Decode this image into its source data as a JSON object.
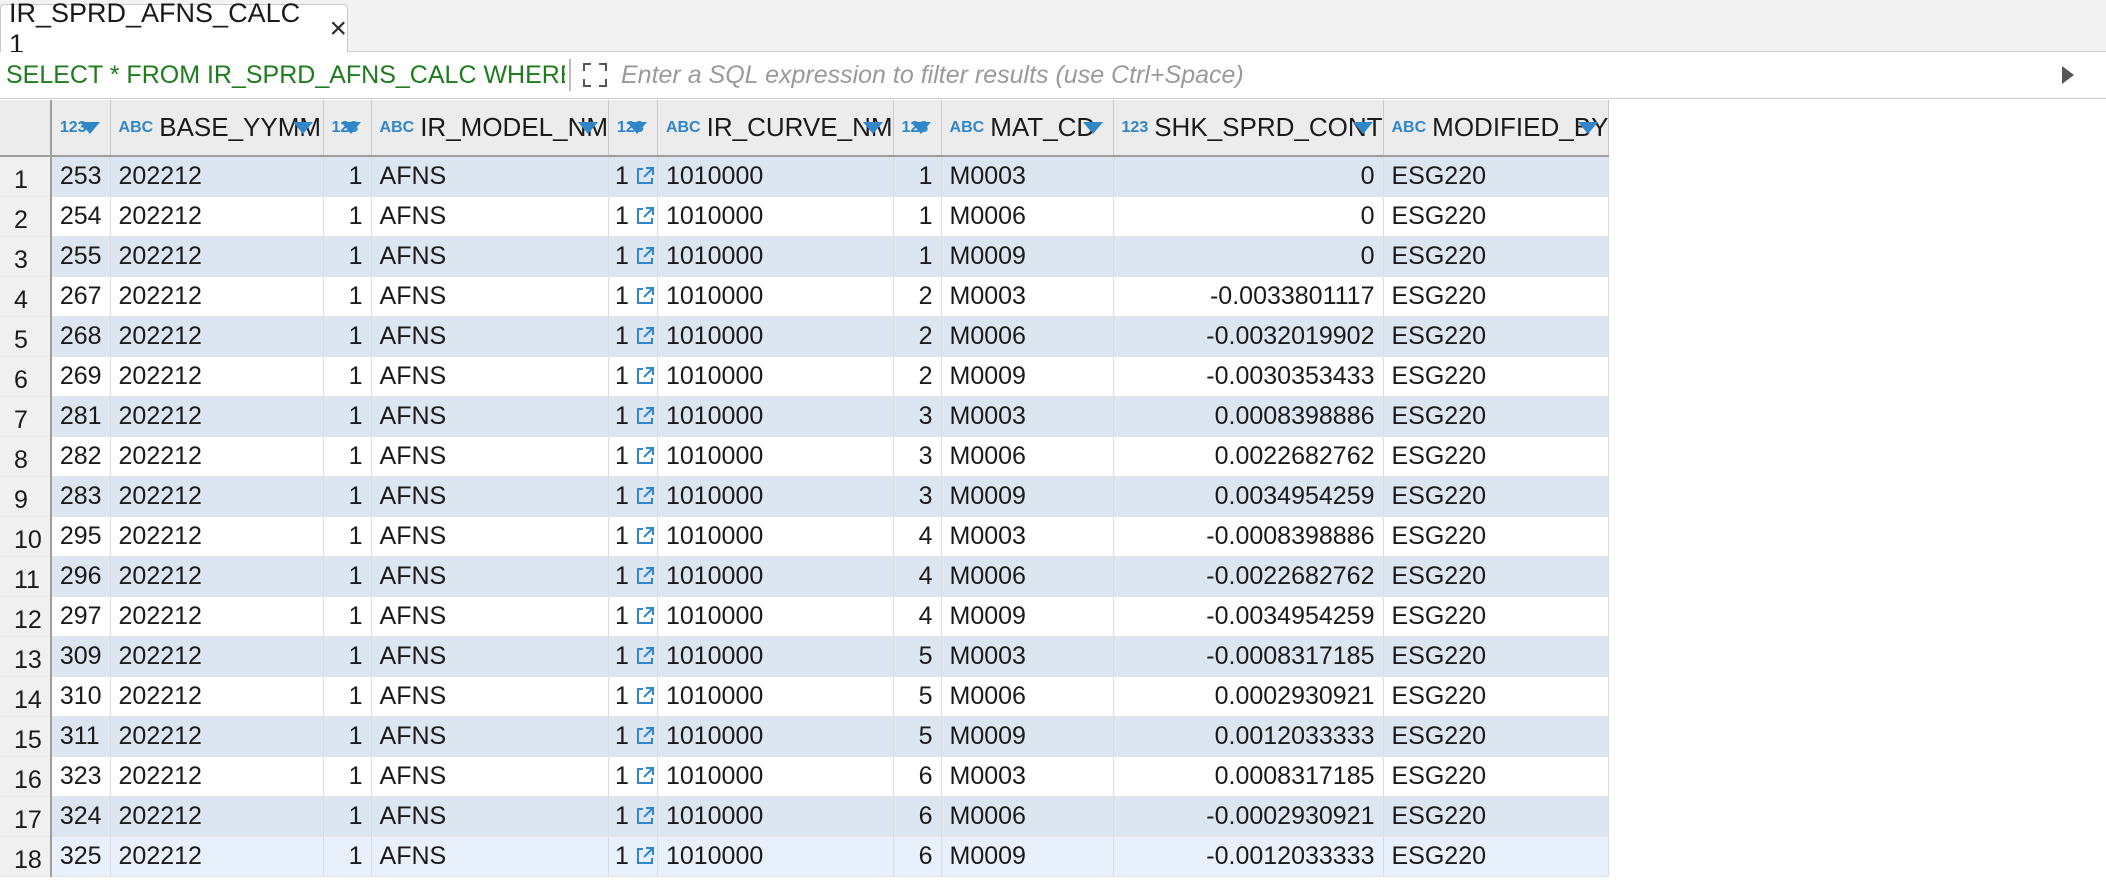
{
  "tab": {
    "title": "IR_SPRD_AFNS_CALC 1"
  },
  "filter": {
    "sql": "SELECT * FROM IR_SPRD_AFNS_CALC WHERE",
    "placeholder": "Enter a SQL expression to filter results (use Ctrl+Space)"
  },
  "colors": {
    "accent": "#2f86c8",
    "sql_green": "#1e7b1e",
    "row_stripe": "#dce6f1"
  },
  "columns": [
    {
      "badge": "123",
      "label": ""
    },
    {
      "badge": "ABC",
      "label": "BASE_YYMM"
    },
    {
      "badge": "123",
      "label": ""
    },
    {
      "badge": "ABC",
      "label": "IR_MODEL_NM"
    },
    {
      "badge": "123",
      "label": ""
    },
    {
      "badge": "ABC",
      "label": "IR_CURVE_NM"
    },
    {
      "badge": "123",
      "label": ""
    },
    {
      "badge": "ABC",
      "label": "MAT_CD"
    },
    {
      "badge": "123",
      "label": "SHK_SPRD_CONT"
    },
    {
      "badge": "ABC",
      "label": "MODIFIED_BY"
    }
  ],
  "rows": [
    [
      "1",
      "253",
      "202212",
      "1",
      "AFNS",
      "1",
      "1010000",
      "1",
      "M0003",
      "0",
      "ESG220"
    ],
    [
      "2",
      "254",
      "202212",
      "1",
      "AFNS",
      "1",
      "1010000",
      "1",
      "M0006",
      "0",
      "ESG220"
    ],
    [
      "3",
      "255",
      "202212",
      "1",
      "AFNS",
      "1",
      "1010000",
      "1",
      "M0009",
      "0",
      "ESG220"
    ],
    [
      "4",
      "267",
      "202212",
      "1",
      "AFNS",
      "1",
      "1010000",
      "2",
      "M0003",
      "-0.0033801117",
      "ESG220"
    ],
    [
      "5",
      "268",
      "202212",
      "1",
      "AFNS",
      "1",
      "1010000",
      "2",
      "M0006",
      "-0.0032019902",
      "ESG220"
    ],
    [
      "6",
      "269",
      "202212",
      "1",
      "AFNS",
      "1",
      "1010000",
      "2",
      "M0009",
      "-0.0030353433",
      "ESG220"
    ],
    [
      "7",
      "281",
      "202212",
      "1",
      "AFNS",
      "1",
      "1010000",
      "3",
      "M0003",
      "0.0008398886",
      "ESG220"
    ],
    [
      "8",
      "282",
      "202212",
      "1",
      "AFNS",
      "1",
      "1010000",
      "3",
      "M0006",
      "0.0022682762",
      "ESG220"
    ],
    [
      "9",
      "283",
      "202212",
      "1",
      "AFNS",
      "1",
      "1010000",
      "3",
      "M0009",
      "0.0034954259",
      "ESG220"
    ],
    [
      "10",
      "295",
      "202212",
      "1",
      "AFNS",
      "1",
      "1010000",
      "4",
      "M0003",
      "-0.0008398886",
      "ESG220"
    ],
    [
      "11",
      "296",
      "202212",
      "1",
      "AFNS",
      "1",
      "1010000",
      "4",
      "M0006",
      "-0.0022682762",
      "ESG220"
    ],
    [
      "12",
      "297",
      "202212",
      "1",
      "AFNS",
      "1",
      "1010000",
      "4",
      "M0009",
      "-0.0034954259",
      "ESG220"
    ],
    [
      "13",
      "309",
      "202212",
      "1",
      "AFNS",
      "1",
      "1010000",
      "5",
      "M0003",
      "-0.0008317185",
      "ESG220"
    ],
    [
      "14",
      "310",
      "202212",
      "1",
      "AFNS",
      "1",
      "1010000",
      "5",
      "M0006",
      "0.0002930921",
      "ESG220"
    ],
    [
      "15",
      "311",
      "202212",
      "1",
      "AFNS",
      "1",
      "1010000",
      "5",
      "M0009",
      "0.0012033333",
      "ESG220"
    ],
    [
      "16",
      "323",
      "202212",
      "1",
      "AFNS",
      "1",
      "1010000",
      "6",
      "M0003",
      "0.0008317185",
      "ESG220"
    ],
    [
      "17",
      "324",
      "202212",
      "1",
      "AFNS",
      "1",
      "1010000",
      "6",
      "M0006",
      "-0.0002930921",
      "ESG220"
    ],
    [
      "18",
      "325",
      "202212",
      "1",
      "AFNS",
      "1",
      "1010000",
      "6",
      "M0009",
      "-0.0012033333",
      "ESG220"
    ]
  ]
}
